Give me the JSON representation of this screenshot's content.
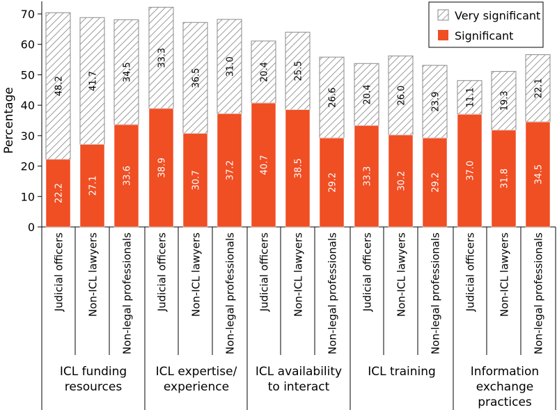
{
  "chart_data": {
    "type": "bar",
    "stacked": true,
    "ylabel": "Percentage",
    "ylim": [
      0,
      70
    ],
    "yticks": [
      0,
      10,
      20,
      30,
      40,
      50,
      60,
      70
    ],
    "legend_position": "top-right",
    "groups": [
      {
        "label": [
          "ICL funding",
          "resources"
        ]
      },
      {
        "label": [
          "ICL expertise/",
          "experience"
        ]
      },
      {
        "label": [
          "ICL availability",
          "to interact"
        ]
      },
      {
        "label": [
          "ICL training"
        ]
      },
      {
        "label": [
          "Information",
          "exchange",
          "practices"
        ]
      }
    ],
    "categories": [
      "Judicial officers",
      "Non-ICL lawyers",
      "Non-legal professionals"
    ],
    "series": [
      {
        "name": "Significant",
        "color": "#f04e23",
        "values": [
          [
            22.2,
            27.1,
            33.6
          ],
          [
            38.9,
            30.7,
            37.2
          ],
          [
            40.7,
            38.5,
            29.2
          ],
          [
            33.3,
            30.2,
            29.2
          ],
          [
            37.0,
            31.8,
            34.5
          ]
        ],
        "labels": [
          [
            "22.2",
            "27.1",
            "33.6"
          ],
          [
            "38.9",
            "30.7",
            "37.2"
          ],
          [
            "40.7",
            "38.5",
            "29.2"
          ],
          [
            "33.3",
            "30.2",
            "29.2"
          ],
          [
            "37.0",
            "31.8",
            "34.5"
          ]
        ]
      },
      {
        "name": "Very significant",
        "color": "#9a9a9a",
        "pattern": "diagonal-hatch",
        "values": [
          [
            48.2,
            41.7,
            34.5
          ],
          [
            33.3,
            36.5,
            31.0
          ],
          [
            20.4,
            25.5,
            26.6
          ],
          [
            20.4,
            26.0,
            23.9
          ],
          [
            11.1,
            19.3,
            22.1
          ]
        ],
        "labels": [
          [
            "48.2",
            "41.7",
            "34.5"
          ],
          [
            "33.3",
            "36.5",
            "31.0"
          ],
          [
            "20.4",
            "25.5",
            "26.6"
          ],
          [
            "20.4",
            "26.0",
            "23.9"
          ],
          [
            "11.1",
            "19.3",
            "22.1"
          ]
        ]
      }
    ]
  }
}
